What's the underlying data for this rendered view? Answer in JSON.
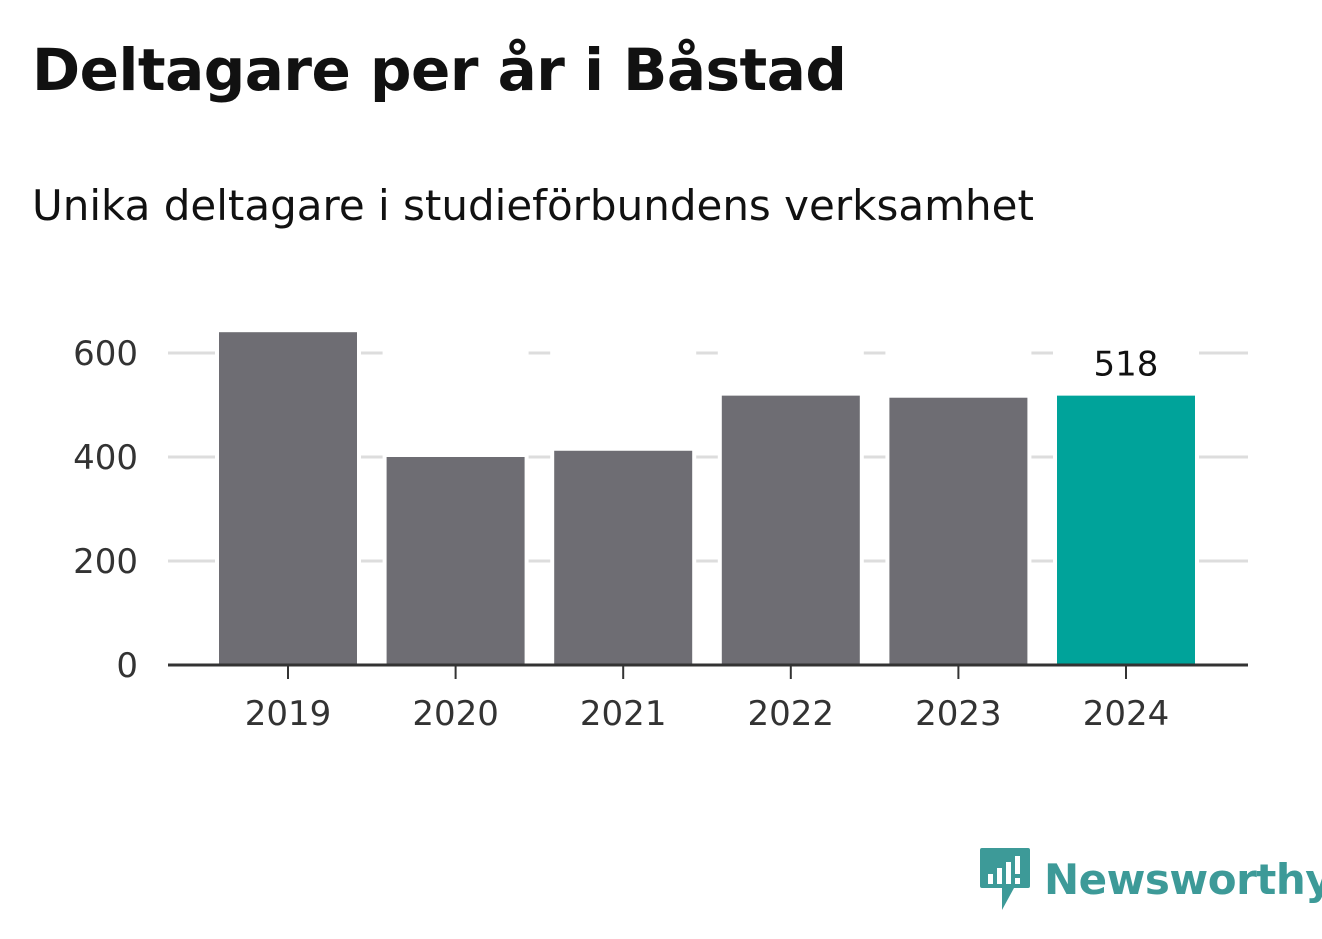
{
  "title": "Deltagare per år i Båstad",
  "subtitle": "Unika deltagare i studieförbundens verksamhet",
  "brand": {
    "name": "Newsworthy",
    "color": "#3d9a98",
    "icon": "newsworthy-logo-icon"
  },
  "colors": {
    "bar": "#6e6d73",
    "highlight": "#00a39a",
    "grid": "#dddddd",
    "axis": "#333333"
  },
  "chart_data": {
    "type": "bar",
    "categories": [
      "2019",
      "2020",
      "2021",
      "2022",
      "2023",
      "2024"
    ],
    "values": [
      640,
      400,
      412,
      518,
      514,
      518
    ],
    "highlight_index": 5,
    "data_labels": [
      {
        "index": 5,
        "text": "518"
      }
    ],
    "yticks": [
      0,
      200,
      400,
      600
    ],
    "ylim": [
      0,
      640
    ],
    "grid": true,
    "xlabel": "",
    "ylabel": ""
  }
}
